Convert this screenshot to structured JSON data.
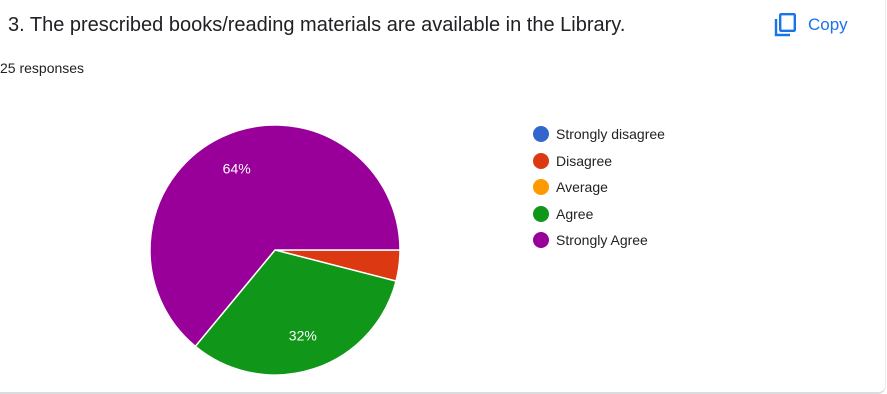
{
  "question": {
    "title": "3. The prescribed books/reading materials are available in the Library.",
    "responses": "25 responses"
  },
  "toolbar": {
    "copy_label": "Copy",
    "copy_icon": "copy-icon",
    "accent_color": "#1a73e8"
  },
  "chart_data": {
    "type": "pie",
    "categories": [
      "Strongly disagree",
      "Disagree",
      "Average",
      "Agree",
      "Strongly Agree"
    ],
    "values": [
      0,
      4,
      0,
      32,
      64
    ],
    "value_labels": [
      "",
      "",
      "",
      "32%",
      "64%"
    ],
    "colors": [
      "#3366cc",
      "#dc3912",
      "#ff9900",
      "#109618",
      "#990099"
    ],
    "legend_position": "right",
    "title": ""
  }
}
